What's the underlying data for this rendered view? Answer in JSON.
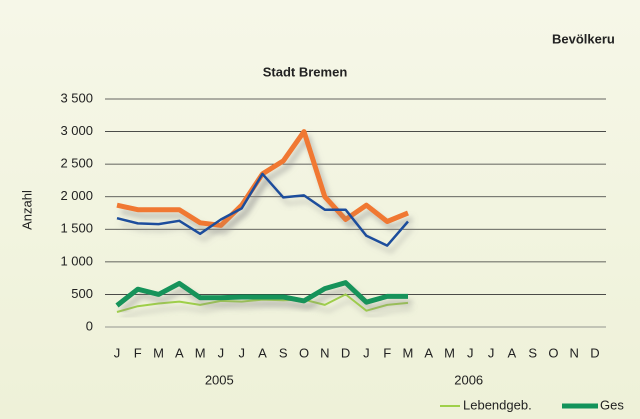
{
  "chart_data": {
    "type": "line",
    "header": "Bevölkeru",
    "title": "Stadt Bremen",
    "y_label": "Anzahl",
    "categories": [
      "J",
      "F",
      "M",
      "A",
      "M",
      "J",
      "J",
      "A",
      "S",
      "O",
      "N",
      "D",
      "J",
      "F",
      "M",
      "A",
      "M",
      "J",
      "J",
      "A",
      "S",
      "O",
      "N",
      "D"
    ],
    "year_labels": [
      "2005",
      "2006"
    ],
    "ylim": [
      0,
      3500
    ],
    "yticks": [
      0,
      {
        "value": 500,
        "label": "500"
      },
      {
        "value": 1000,
        "label": "1 000"
      },
      {
        "value": 1500,
        "label": "1 500"
      },
      {
        "value": 2000,
        "label": "2 000"
      },
      {
        "value": 2500,
        "label": "2 500"
      },
      {
        "value": 3000,
        "label": "3 000"
      },
      {
        "value": 3500,
        "label": "3 500"
      }
    ],
    "grid": true,
    "legend": "bottom-right",
    "series": [
      {
        "color": "#f07830",
        "values": [
          1870,
          1800,
          1800,
          1800,
          1600,
          1560,
          1870,
          2350,
          2550,
          3000,
          2000,
          1650,
          1870,
          1620,
          1750,
          null,
          null,
          null,
          null,
          null,
          null,
          null,
          null,
          null
        ]
      },
      {
        "color": "#1f4e9c",
        "values": [
          1670,
          1590,
          1580,
          1630,
          1430,
          1650,
          1820,
          2350,
          1990,
          2020,
          1800,
          1800,
          1400,
          1250,
          1620,
          null,
          null,
          null,
          null,
          null,
          null,
          null,
          null,
          null
        ]
      },
      {
        "name": "Lebendgeb.",
        "color": "#9fd04a",
        "values": [
          230,
          320,
          360,
          390,
          340,
          400,
          390,
          420,
          410,
          420,
          340,
          500,
          250,
          340,
          370,
          null,
          null,
          null,
          null,
          null,
          null,
          null,
          null,
          null
        ]
      },
      {
        "name": "Ges",
        "color": "#12935a",
        "values": [
          330,
          580,
          500,
          670,
          450,
          450,
          460,
          460,
          460,
          400,
          590,
          680,
          380,
          470,
          470,
          null,
          null,
          null,
          null,
          null,
          null,
          null,
          null,
          null
        ]
      }
    ]
  }
}
